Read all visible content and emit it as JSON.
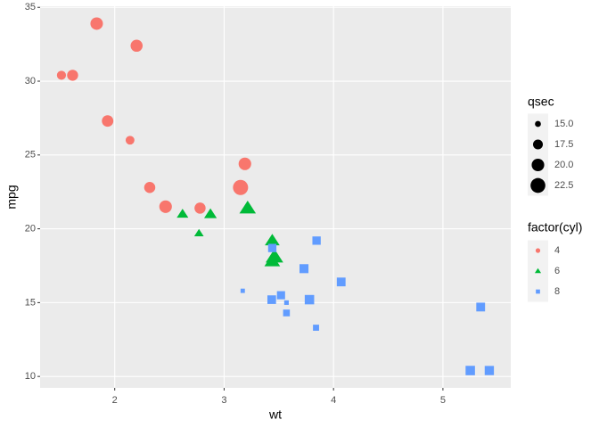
{
  "chart_data": {
    "type": "scatter",
    "x_label": "wt",
    "y_label": "mpg",
    "xlim": [
      1.318,
      5.62
    ],
    "ylim": [
      9.225,
      35.075
    ],
    "xticks": [
      2,
      3,
      4,
      5
    ],
    "yticks": [
      10,
      15,
      20,
      25,
      30,
      35
    ],
    "grid": true,
    "size_legend": {
      "title": "qsec",
      "ticks": [
        {
          "value": 15,
          "label": "15.0"
        },
        {
          "value": 17.5,
          "label": "17.5"
        },
        {
          "value": 20,
          "label": "20.0"
        },
        {
          "value": 22.5,
          "label": "22.5"
        }
      ]
    },
    "legend_title": "factor(cyl)",
    "series": [
      {
        "name": "4",
        "color": "#F8766D",
        "shape": "circle",
        "x": [
          2.32,
          3.19,
          3.15,
          2.2,
          1.615,
          1.835,
          2.465,
          1.935,
          2.14,
          1.513,
          2.78
        ],
        "y": [
          22.8,
          24.4,
          22.8,
          32.4,
          30.4,
          33.9,
          21.5,
          27.3,
          26.0,
          30.4,
          21.4
        ],
        "size": [
          18.61,
          20.0,
          22.9,
          19.47,
          18.52,
          19.9,
          20.01,
          18.9,
          16.7,
          16.9,
          18.6
        ]
      },
      {
        "name": "6",
        "color": "#00BA38",
        "shape": "triangle",
        "x": [
          2.62,
          2.875,
          3.215,
          3.46,
          3.44,
          3.44,
          2.77
        ],
        "y": [
          21.0,
          21.0,
          21.4,
          18.1,
          19.2,
          17.8,
          19.7
        ],
        "size": [
          16.46,
          17.02,
          19.44,
          20.22,
          18.3,
          18.9,
          15.5
        ]
      },
      {
        "name": "8",
        "color": "#619CFF",
        "shape": "square",
        "x": [
          3.44,
          3.57,
          4.07,
          3.73,
          3.78,
          5.25,
          5.424,
          5.345,
          3.52,
          3.435,
          3.84,
          3.845,
          3.17,
          3.57
        ],
        "y": [
          18.7,
          14.3,
          16.4,
          17.3,
          15.2,
          10.4,
          10.4,
          14.7,
          15.5,
          15.2,
          13.3,
          19.2,
          15.8,
          15.0
        ],
        "size": [
          17.02,
          15.84,
          17.4,
          17.6,
          18.0,
          17.98,
          17.82,
          17.42,
          16.87,
          17.3,
          15.41,
          17.05,
          14.5,
          14.6
        ]
      }
    ]
  }
}
